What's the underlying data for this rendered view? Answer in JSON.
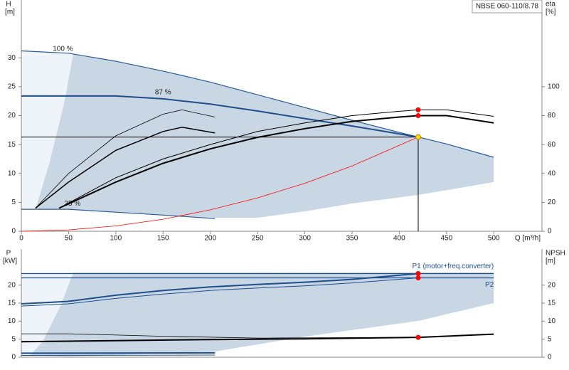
{
  "chart_data": [
    {
      "type": "line",
      "title": "NBSE 060-110/8.78",
      "y_label": "H",
      "y_unit": "[m]",
      "y2_label": "eta",
      "y2_unit": "[%]",
      "x_label": "Q [m³/h]",
      "xlim": [
        0,
        551
      ],
      "xticks": [
        0,
        50,
        100,
        150,
        200,
        250,
        300,
        350,
        400,
        450,
        500
      ],
      "ylim": [
        0,
        40
      ],
      "yticks": [
        0,
        5,
        10,
        15,
        20,
        25,
        30
      ],
      "y2lim": [
        0,
        160
      ],
      "y2ticks": [
        0,
        20,
        40,
        60,
        80,
        100
      ],
      "duty_point": {
        "x": 420,
        "y": 16.3,
        "color": "#ffd700"
      },
      "series": [
        {
          "name": "100 %",
          "color": "#2a5a92",
          "width": 1.2,
          "x": [
            0,
            50,
            100,
            150,
            200,
            250,
            300,
            350,
            400,
            420,
            450,
            500
          ],
          "values": [
            31.2,
            30.8,
            29.4,
            27.7,
            25.8,
            23.6,
            21.4,
            19.2,
            17.1,
            16.3,
            15.1,
            12.8
          ]
        },
        {
          "name": "87 %",
          "color": "#1f4e8c",
          "width": 2,
          "x": [
            0,
            50,
            100,
            150,
            200,
            250,
            300,
            350,
            420
          ],
          "values": [
            23.4,
            23.4,
            23.4,
            22.9,
            22.0,
            20.8,
            19.5,
            18.2,
            16.3
          ]
        },
        {
          "name": "35 %",
          "color": "#2a5a92",
          "width": 1.2,
          "x": [
            0,
            50,
            100,
            150,
            205
          ],
          "values": [
            3.8,
            3.8,
            3.3,
            2.8,
            2.2
          ]
        },
        {
          "color": "#000000",
          "width": 1,
          "axis": "y2",
          "x": [
            40,
            100,
            150,
            200,
            250,
            300,
            350,
            400,
            420,
            450,
            500
          ],
          "values": [
            16,
            37,
            50,
            60,
            69,
            75,
            80,
            83,
            84,
            84,
            79.5
          ]
        },
        {
          "color": "#000000",
          "width": 2,
          "axis": "y2",
          "x": [
            40,
            100,
            150,
            200,
            250,
            300,
            350,
            400,
            420,
            450,
            500
          ],
          "values": [
            16,
            34,
            47,
            57,
            65,
            71,
            76,
            79,
            80,
            80,
            75
          ]
        },
        {
          "color": "#000000",
          "width": 0.8,
          "axis": "y2",
          "x": [
            15,
            50,
            100,
            150,
            170,
            205
          ],
          "values": [
            16,
            40,
            66,
            81,
            84,
            79
          ]
        },
        {
          "color": "#000000",
          "width": 1.5,
          "axis": "y2",
          "x": [
            15,
            50,
            100,
            150,
            170,
            205
          ],
          "values": [
            16,
            34,
            56,
            69,
            72,
            68
          ]
        },
        {
          "color": "#ff0000",
          "width": 0.8,
          "x": [
            0,
            50,
            100,
            150,
            200,
            250,
            300,
            350,
            420
          ],
          "values": [
            0,
            0.23,
            0.92,
            2.08,
            3.7,
            5.77,
            8.3,
            11.3,
            16.3
          ]
        },
        {
          "style": "dots",
          "color": "#ff0000",
          "axis": "y2",
          "x": [
            420,
            420
          ],
          "values": [
            84,
            80
          ]
        }
      ]
    },
    {
      "type": "line",
      "y_label": "P",
      "y_unit": "[kW]",
      "y2_label": "NPSH",
      "y2_unit": "[m]",
      "xlim": [
        0,
        551
      ],
      "ylim": [
        0,
        30
      ],
      "yticks": [
        0,
        5,
        10,
        15,
        20
      ],
      "y2lim": [
        0,
        30
      ],
      "y2ticks": [
        0,
        5,
        10,
        15,
        20
      ],
      "series": [
        {
          "name": "P1 (motor+freq.converter)",
          "color": "#1f4e8c",
          "width": 1.2,
          "x": [
            0,
            500
          ],
          "values": [
            23.2,
            23.2
          ]
        },
        {
          "name": "P2",
          "color": "#1f4e8c",
          "width": 1.2,
          "x": [
            0,
            500
          ],
          "values": [
            22,
            22
          ]
        },
        {
          "color": "#1f4e8c",
          "width": 2,
          "x": [
            0,
            50,
            100,
            150,
            200,
            250,
            300,
            350,
            420
          ],
          "values": [
            14.8,
            15.5,
            17.2,
            18.5,
            19.5,
            20.2,
            20.8,
            21.6,
            23.2
          ]
        },
        {
          "color": "#1f4e8c",
          "width": 1,
          "x": [
            0,
            50,
            100,
            150,
            200,
            250,
            300,
            350,
            420
          ],
          "values": [
            14.2,
            14.8,
            16.3,
            17.5,
            18.5,
            19.2,
            19.8,
            20.6,
            22
          ]
        },
        {
          "color": "#1f4e8c",
          "width": 2,
          "x": [
            0,
            205
          ],
          "values": [
            1.1,
            1.2
          ]
        },
        {
          "color": "#1f4e8c",
          "width": 1,
          "x": [
            0,
            205
          ],
          "values": [
            0.5,
            0.6
          ]
        },
        {
          "color": "#000000",
          "width": 2,
          "axis": "y2",
          "x": [
            0,
            100,
            200,
            300,
            420,
            500
          ],
          "values": [
            4.3,
            4.6,
            4.9,
            5.1,
            5.5,
            6.4
          ]
        },
        {
          "color": "#000000",
          "width": 0.8,
          "axis": "y2",
          "x": [
            0,
            50,
            150,
            250,
            420
          ],
          "values": [
            6.5,
            6.5,
            5.8,
            5.3,
            5.5
          ]
        },
        {
          "style": "dots",
          "color": "#ff0000",
          "x": [
            420,
            420
          ],
          "values": [
            23.2,
            22
          ]
        },
        {
          "style": "dots",
          "color": "#ff0000",
          "axis": "y2",
          "x": [
            420
          ],
          "values": [
            5.5
          ]
        }
      ]
    }
  ]
}
